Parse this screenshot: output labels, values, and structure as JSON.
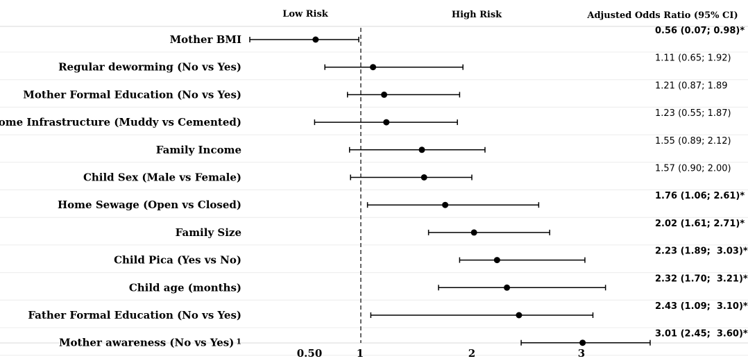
{
  "chart_data": {
    "type": "forest",
    "header_low": "Low Risk",
    "header_high": "High Risk",
    "header_or": "Adjusted Odds Ratio (95% CI)",
    "reference_line": 1,
    "x_ticks": [
      "0.50",
      "1",
      "2",
      "3"
    ],
    "rows": [
      {
        "label": "Mother BMI",
        "sup": "",
        "or": 0.56,
        "lo": 0.07,
        "hi": 0.98,
        "text": "0.56 (0.07; 0.98)",
        "star": "*",
        "sig": true
      },
      {
        "label": "Regular deworming (No vs Yes)",
        "sup": "",
        "or": 1.11,
        "lo": 0.65,
        "hi": 1.92,
        "text": "1.11 (0.65; 1.92)",
        "star": "",
        "sig": false
      },
      {
        "label": "Mother Formal Education (No vs Yes)",
        "sup": "",
        "or": 1.21,
        "lo": 0.87,
        "hi": 1.89,
        "text": "1.21 (0.87; 1.89",
        "star": "",
        "sig": false
      },
      {
        "label": "Home Infrastructure (Muddy vs Cemented)",
        "sup": "",
        "or": 1.23,
        "lo": 0.55,
        "hi": 1.87,
        "text": "1.23 (0.55; 1.87)",
        "star": "",
        "sig": false
      },
      {
        "label": "Family Income",
        "sup": "",
        "or": 1.55,
        "lo": 0.89,
        "hi": 2.12,
        "text": "1.55 (0.89; 2.12)",
        "star": "",
        "sig": false
      },
      {
        "label": "Child Sex (Male vs Female)",
        "sup": "",
        "or": 1.57,
        "lo": 0.9,
        "hi": 2.0,
        "text": "1.57 (0.90; 2.00)",
        "star": "",
        "sig": false
      },
      {
        "label": "Home Sewage (Open vs Closed)",
        "sup": "",
        "or": 1.76,
        "lo": 1.06,
        "hi": 2.61,
        "text": "1.76 (1.06; 2.61)",
        "star": "*",
        "sig": true
      },
      {
        "label": "Family Size",
        "sup": "",
        "or": 2.02,
        "lo": 1.61,
        "hi": 2.71,
        "text": "2.02 (1.61; 2.71)",
        "star": "*",
        "sig": true
      },
      {
        "label": "Child Pica (Yes vs No)",
        "sup": "",
        "or": 2.23,
        "lo": 1.89,
        "hi": 3.03,
        "text": "2.23 (1.89;  3.03)",
        "star": "*",
        "sig": true
      },
      {
        "label": "Child age (months)",
        "sup": "",
        "or": 2.32,
        "lo": 1.7,
        "hi": 3.21,
        "text": "2.32 (1.70;  3.21)",
        "star": "*",
        "sig": true
      },
      {
        "label": "Father Formal Education (No vs Yes)",
        "sup": "",
        "or": 2.43,
        "lo": 1.09,
        "hi": 3.1,
        "text": "2.43 (1.09;  3.10)",
        "star": "*",
        "sig": true
      },
      {
        "label": "Mother awareness (No vs Yes)",
        "sup": "1",
        "or": 3.01,
        "lo": 2.45,
        "hi": 3.6,
        "text": "3.01 (2.45;  3.60)",
        "star": "*",
        "sig": true
      }
    ]
  }
}
